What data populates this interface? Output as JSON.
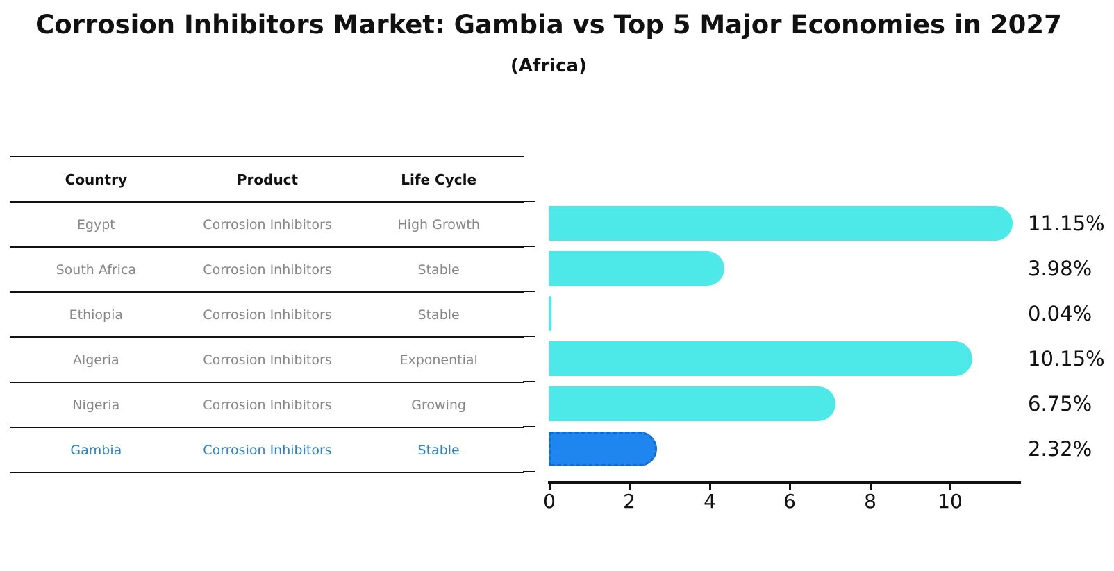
{
  "title": "Corrosion Inhibitors Market: Gambia vs Top 5 Major Economies in 2027",
  "subtitle": "(Africa)",
  "table": {
    "headers": [
      "Country",
      "Product",
      "Life Cycle"
    ],
    "rows": [
      {
        "country": "Egypt",
        "product": "Corrosion Inhibitors",
        "life_cycle": "High Growth"
      },
      {
        "country": "South Africa",
        "product": "Corrosion Inhibitors",
        "life_cycle": "Stable"
      },
      {
        "country": "Ethiopia",
        "product": "Corrosion Inhibitors",
        "life_cycle": "Stable"
      },
      {
        "country": "Algeria",
        "product": "Corrosion Inhibitors",
        "life_cycle": "Exponential"
      },
      {
        "country": "Nigeria",
        "product": "Corrosion Inhibitors",
        "life_cycle": "Growing"
      },
      {
        "country": "Gambia",
        "product": "Corrosion Inhibitors",
        "life_cycle": "Stable"
      }
    ],
    "highlight_row_index": 5
  },
  "chart_data": {
    "type": "bar",
    "orientation": "horizontal",
    "categories": [
      "Egypt",
      "South Africa",
      "Ethiopia",
      "Algeria",
      "Nigeria",
      "Gambia"
    ],
    "values": [
      11.15,
      3.98,
      0.04,
      10.15,
      6.75,
      2.32
    ],
    "value_labels": [
      "11.15%",
      "3.98%",
      "0.04%",
      "10.15%",
      "6.75%",
      "2.32%"
    ],
    "xlim": [
      0,
      11.74
    ],
    "xticks": [
      0,
      2,
      4,
      6,
      8,
      10
    ],
    "grid": false,
    "legend": false,
    "bar_color": "#4DE8E8",
    "highlight_bar_color": "#1F86F0",
    "highlight_border_color": "#1668CF",
    "highlight_index": 5,
    "highlight_style": "dashed-outline"
  },
  "colors": {
    "background": "#FFFFFF",
    "text_primary": "#111111",
    "table_text": "#878787",
    "highlight_text": "#2E82C6",
    "line": "#111111"
  }
}
